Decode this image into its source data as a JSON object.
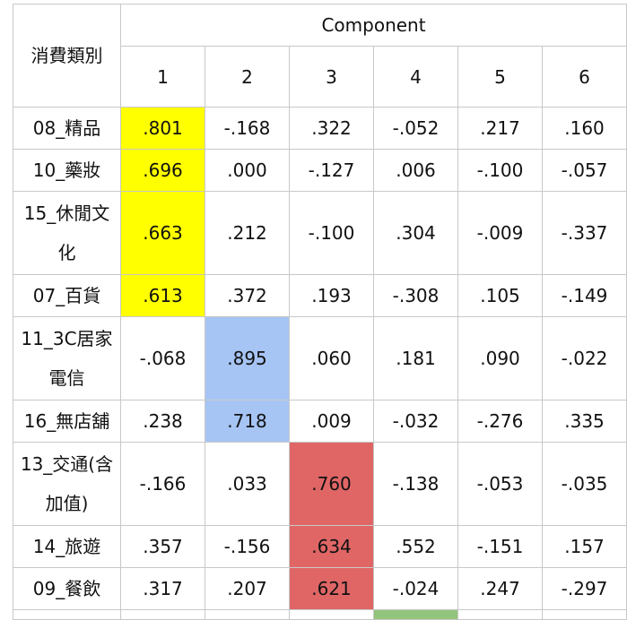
{
  "table": {
    "corner_label": "消費類別",
    "component_header": "Component",
    "component_numbers": [
      "1",
      "2",
      "3",
      "4",
      "5",
      "6"
    ],
    "rows": [
      {
        "label": "08_精品",
        "values": [
          ".801",
          "-.168",
          ".322",
          "-.052",
          ".217",
          ".160"
        ]
      },
      {
        "label": "10_藥妝",
        "values": [
          ".696",
          ".000",
          "-.127",
          ".006",
          "-.100",
          "-.057"
        ]
      },
      {
        "label": "15_休閒文化",
        "values": [
          ".663",
          ".212",
          "-.100",
          ".304",
          "-.009",
          "-.337"
        ]
      },
      {
        "label": "07_百貨",
        "values": [
          ".613",
          ".372",
          ".193",
          "-.308",
          ".105",
          "-.149"
        ]
      },
      {
        "label": "11_3C居家電信",
        "values": [
          "-.068",
          ".895",
          ".060",
          ".181",
          ".090",
          "-.022"
        ]
      },
      {
        "label": "16_無店舖",
        "values": [
          ".238",
          ".718",
          ".009",
          "-.032",
          "-.276",
          ".335"
        ]
      },
      {
        "label": "13_交通(含加值)",
        "values": [
          "-.166",
          ".033",
          ".760",
          "-.138",
          "-.053",
          "-.035"
        ]
      },
      {
        "label": "14_旅遊",
        "values": [
          ".357",
          "-.156",
          ".634",
          ".552",
          "-.151",
          ".157"
        ]
      },
      {
        "label": "09_餐飲",
        "values": [
          ".317",
          ".207",
          ".621",
          "-.024",
          ".247",
          "-.297"
        ]
      }
    ]
  },
  "highlight_colors": {
    "component_1": "#ffff00",
    "component_2": "#a6c4f4",
    "component_3": "#e06666",
    "component_4": "#93c47d"
  }
}
